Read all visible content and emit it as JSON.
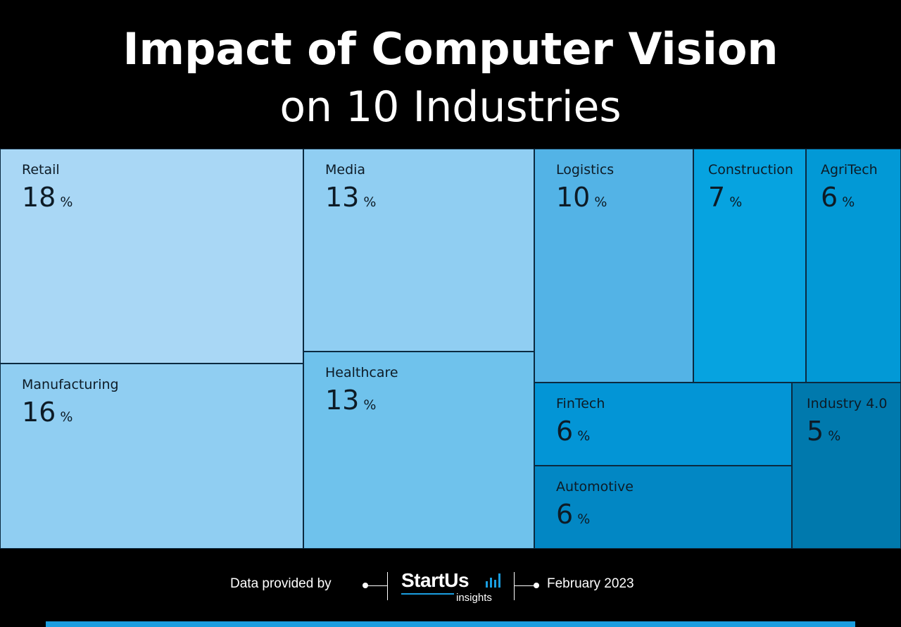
{
  "title": "Impact of Computer Vision",
  "subtitle": "on 10 Industries",
  "chart_data": {
    "type": "treemap",
    "unit": "%",
    "items": [
      {
        "label": "Retail",
        "value": 18,
        "color": "#a9d7f5"
      },
      {
        "label": "Manufacturing",
        "value": 16,
        "color": "#90cef2"
      },
      {
        "label": "Media",
        "value": 13,
        "color": "#90cef2"
      },
      {
        "label": "Healthcare",
        "value": 13,
        "color": "#6fc2ec"
      },
      {
        "label": "Logistics",
        "value": 10,
        "color": "#53b3e6"
      },
      {
        "label": "Construction",
        "value": 7,
        "color": "#06a3e0"
      },
      {
        "label": "AgriTech",
        "value": 6,
        "color": "#0299d6"
      },
      {
        "label": "FinTech",
        "value": 6,
        "color": "#0395d6"
      },
      {
        "label": "Automotive",
        "value": 6,
        "color": "#0287c4"
      },
      {
        "label": "Industry 4.0",
        "value": 5,
        "color": "#0079ad"
      }
    ]
  },
  "footer": {
    "provided_by": "Data provided by",
    "logo_name": "StartUs",
    "logo_sub": "insights",
    "date": "February 2023"
  },
  "colors": {
    "background": "#000000",
    "accent": "#1a9ee0"
  }
}
